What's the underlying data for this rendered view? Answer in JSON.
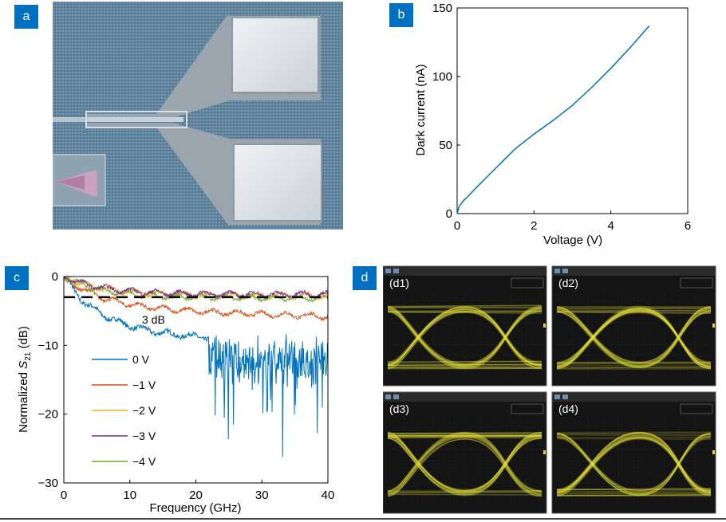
{
  "figure": {
    "panels": {
      "a": {
        "label": "a"
      },
      "b": {
        "label": "b"
      },
      "c": {
        "label": "c"
      },
      "d": {
        "label": "d"
      }
    },
    "eye_diagrams": [
      {
        "label": "(d1)"
      },
      {
        "label": "(d2)"
      },
      {
        "label": "(d3)"
      },
      {
        "label": "(d4)"
      }
    ]
  },
  "chart_data": [
    {
      "id": "b",
      "type": "line",
      "xlabel": "Voltage (V)",
      "ylabel": "Dark current (nA)",
      "xlim": [
        0,
        6
      ],
      "ylim": [
        0,
        150
      ],
      "xticks": [
        0,
        2,
        4,
        6
      ],
      "yticks": [
        0,
        50,
        100,
        150
      ],
      "color": "#0072bd",
      "series": [
        {
          "name": "Dark current",
          "x": [
            0,
            0.05,
            0.15,
            0.3,
            0.5,
            0.75,
            1.0,
            1.25,
            1.5,
            2.0,
            2.5,
            3.0,
            3.5,
            4.0,
            4.5,
            5.0
          ],
          "y": [
            0,
            5,
            9,
            13,
            19,
            26,
            33,
            40,
            47,
            58,
            68,
            79,
            92,
            106,
            121,
            137
          ]
        }
      ]
    },
    {
      "id": "c",
      "type": "line",
      "xlabel": "Frequency (GHz)",
      "ylabel_prefix": "Normalized ",
      "ylabel_symbol": "S",
      "ylabel_sub": "21",
      "ylabel_suffix": " (dB)",
      "xlim": [
        0,
        40
      ],
      "ylim": [
        -30,
        0
      ],
      "xticks": [
        0,
        10,
        20,
        30,
        40
      ],
      "yticks": [
        0,
        -10,
        -20,
        -30
      ],
      "annotation": "3 dB",
      "reference_level": -3,
      "series": [
        {
          "name": "0 V",
          "color": "#0072bd"
        },
        {
          "name": "−1 V",
          "color": "#d95319"
        },
        {
          "name": "−2 V",
          "color": "#edb120"
        },
        {
          "name": "−3 V",
          "color": "#7e2f8e"
        },
        {
          "name": "−4 V",
          "color": "#77ac30"
        }
      ]
    }
  ]
}
